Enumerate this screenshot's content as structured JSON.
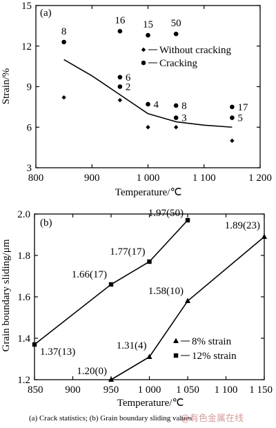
{
  "caption": "(a)  Crack statistics;  (b)  Grain boundary sliding values",
  "watermark": "@有色金属在线",
  "chart_data": [
    {
      "type": "scatter",
      "panel_label": "(a)",
      "xlabel": "Temperature/℃",
      "ylabel": "Strain/%",
      "xlim": [
        800,
        1200
      ],
      "ylim": [
        3,
        15
      ],
      "xticks": [
        800,
        900,
        1000,
        1100,
        1200
      ],
      "xtick_labels": [
        "800",
        "900",
        "1 000",
        "1 100",
        "1 200"
      ],
      "yticks": [
        3,
        6,
        9,
        12,
        15
      ],
      "ytick_labels": [
        "3",
        "6",
        "9",
        "12",
        "15"
      ],
      "legend_position": "top-right",
      "series": [
        {
          "name": "Without cracking",
          "marker": "diamond",
          "points": [
            {
              "x": 850,
              "y": 8.2
            },
            {
              "x": 950,
              "y": 8.0
            },
            {
              "x": 1000,
              "y": 6.0
            },
            {
              "x": 1050,
              "y": 6.0
            },
            {
              "x": 1150,
              "y": 5.0
            }
          ]
        },
        {
          "name": "Cracking",
          "marker": "circle",
          "points": [
            {
              "x": 850,
              "y": 12.3,
              "label": "8"
            },
            {
              "x": 950,
              "y": 13.1,
              "label": "16"
            },
            {
              "x": 1000,
              "y": 12.8,
              "label": "15"
            },
            {
              "x": 1050,
              "y": 12.9,
              "label": "50"
            },
            {
              "x": 950,
              "y": 9.7,
              "label": "6"
            },
            {
              "x": 950,
              "y": 9.0,
              "label": "2"
            },
            {
              "x": 1000,
              "y": 7.7,
              "label": "4"
            },
            {
              "x": 1050,
              "y": 7.6,
              "label": "8"
            },
            {
              "x": 1050,
              "y": 6.7,
              "label": "3"
            },
            {
              "x": 1150,
              "y": 7.5,
              "label": "17"
            },
            {
              "x": 1150,
              "y": 6.7,
              "label": "5"
            }
          ]
        }
      ],
      "boundary_curve": [
        {
          "x": 850,
          "y": 11.0
        },
        {
          "x": 900,
          "y": 9.8
        },
        {
          "x": 950,
          "y": 8.4
        },
        {
          "x": 1000,
          "y": 7.0
        },
        {
          "x": 1050,
          "y": 6.4
        },
        {
          "x": 1100,
          "y": 6.15
        },
        {
          "x": 1150,
          "y": 6.0
        }
      ]
    },
    {
      "type": "line",
      "panel_label": "(b)",
      "xlabel": "Temperature/℃",
      "ylabel": "Grain boundary sliding/μm",
      "xlim": [
        850,
        1150
      ],
      "ylim": [
        1.2,
        2.0
      ],
      "xticks": [
        850,
        900,
        950,
        1000,
        1050,
        1100,
        1150
      ],
      "xtick_labels": [
        "850",
        "900",
        "950",
        "1 000",
        "1 050",
        "1 100",
        "1 150"
      ],
      "yticks": [
        1.2,
        1.4,
        1.6,
        1.8,
        2.0
      ],
      "ytick_labels": [
        "1.2",
        "1.4",
        "1.6",
        "1.8",
        "2.0"
      ],
      "legend_position": "bottom-right",
      "series": [
        {
          "name": "8% strain",
          "marker": "triangle",
          "points": [
            {
              "x": 950,
              "y": 1.2,
              "label": "1.20(0)"
            },
            {
              "x": 1000,
              "y": 1.31,
              "label": "1.31(4)"
            },
            {
              "x": 1050,
              "y": 1.58,
              "label": "1.58(10)"
            },
            {
              "x": 1150,
              "y": 1.89,
              "label": "1.89(23)"
            }
          ]
        },
        {
          "name": "12% strain",
          "marker": "square",
          "points": [
            {
              "x": 850,
              "y": 1.37,
              "label": "1.37(13)"
            },
            {
              "x": 950,
              "y": 1.66,
              "label": "1.66(17)"
            },
            {
              "x": 1000,
              "y": 1.77,
              "label": "1.77(17)"
            },
            {
              "x": 1050,
              "y": 1.97,
              "label": "1.97(50)"
            }
          ]
        }
      ]
    }
  ]
}
